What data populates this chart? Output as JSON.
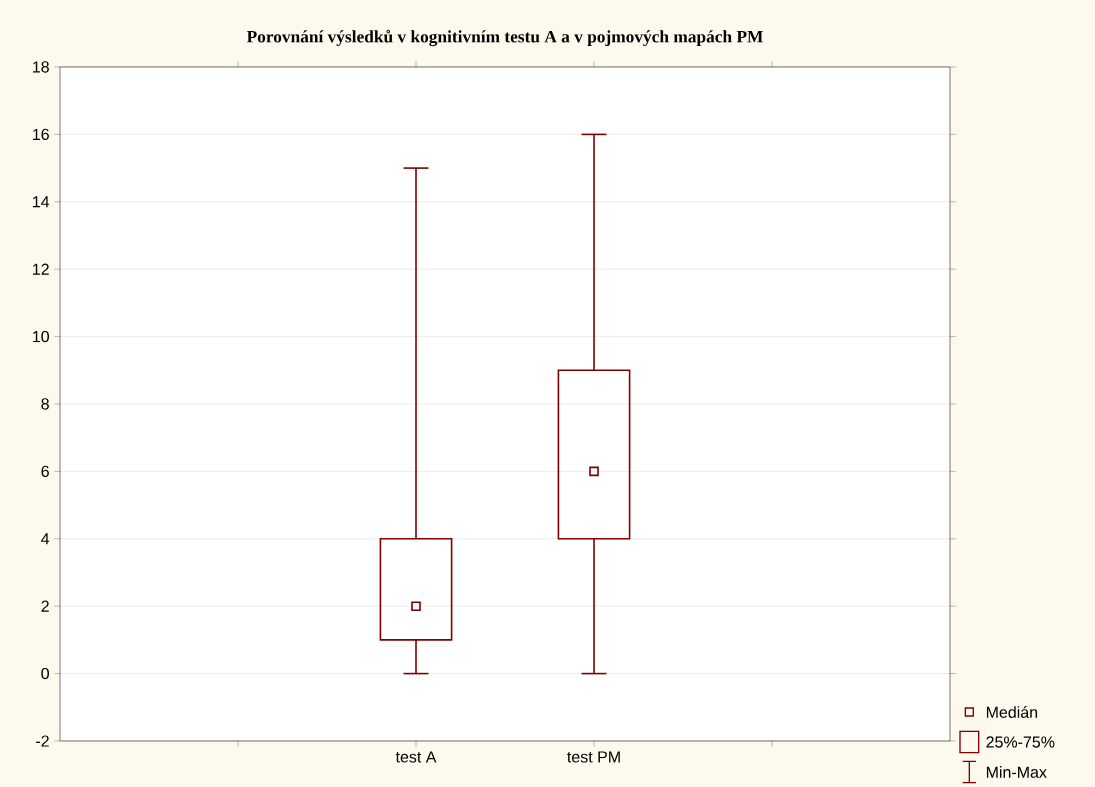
{
  "chart_data": {
    "type": "box",
    "title": "Porovnání výsledků v kognitivním testu A a v pojmových mapách PM",
    "categories": [
      "test A",
      "test PM"
    ],
    "boxes": [
      {
        "low": 0,
        "q1": 1,
        "median": 2,
        "q3": 4,
        "high": 15
      },
      {
        "low": 0,
        "q1": 4,
        "median": 6,
        "q3": 9,
        "high": 16
      }
    ],
    "color": "#800000",
    "ylim": [
      -2,
      18
    ],
    "yticks": [
      -2,
      0,
      2,
      4,
      6,
      8,
      10,
      12,
      14,
      16,
      18
    ],
    "grid": "y",
    "annotations": [
      "Medián",
      "25%-75%",
      "Min-Max"
    ]
  }
}
